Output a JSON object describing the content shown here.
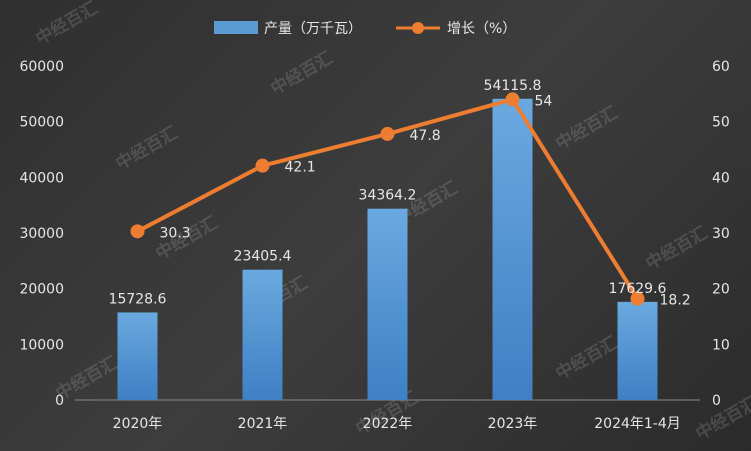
{
  "chart_data": {
    "type": "bar+line",
    "categories": [
      "2020年",
      "2021年",
      "2022年",
      "2023年",
      "2024年1-4月"
    ],
    "series": [
      {
        "name": "产量（万千瓦）",
        "type": "bar",
        "axis": "left",
        "values": [
          15728.6,
          23405.4,
          34364.2,
          54115.8,
          17629.6
        ],
        "color": "#5b9bd5"
      },
      {
        "name": "增长（%）",
        "type": "line",
        "axis": "right",
        "values": [
          30.3,
          42.1,
          47.8,
          54,
          18.2
        ],
        "color": "#ed7d31"
      }
    ],
    "y_left": {
      "min": 0,
      "max": 60000,
      "ticks": [
        0,
        10000,
        20000,
        30000,
        40000,
        50000,
        60000
      ]
    },
    "y_right": {
      "min": 0,
      "max": 60,
      "ticks": [
        0,
        10,
        20,
        30,
        40,
        50,
        60
      ]
    },
    "legend_position": "top-center",
    "grid": false
  },
  "watermark": {
    "text": "中经百汇"
  }
}
